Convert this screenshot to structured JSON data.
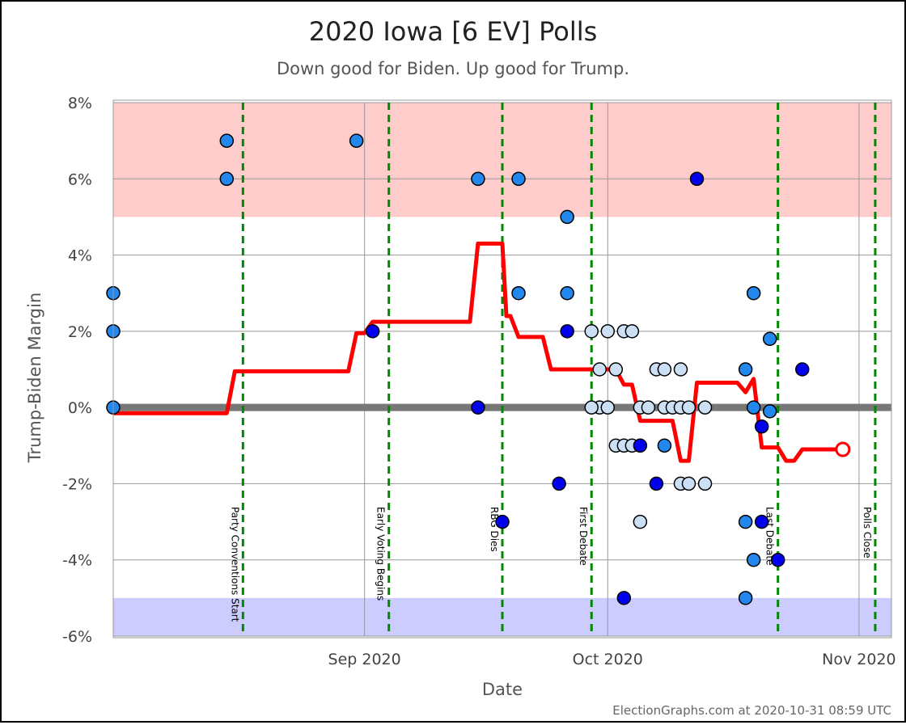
{
  "chart_data": {
    "type": "scatter",
    "title": "2020 Iowa [6 EV] Polls",
    "subtitle": "Down good for Biden. Up good for Trump.",
    "xlabel": "Date",
    "ylabel": "Trump-Biden Margin",
    "credit": "ElectionGraphs.com at 2020-10-31 08:59 UTC",
    "xlim": [
      "2020-08-01",
      "2020-11-05"
    ],
    "ylim": [
      -6,
      8
    ],
    "y_ticks": [
      {
        "v": 8,
        "label": "8%"
      },
      {
        "v": 6,
        "label": "6%"
      },
      {
        "v": 4,
        "label": "4%"
      },
      {
        "v": 2,
        "label": "2%"
      },
      {
        "v": 0,
        "label": "0%"
      },
      {
        "v": -2,
        "label": "-2%"
      },
      {
        "v": -4,
        "label": "-4%"
      },
      {
        "v": -6,
        "label": "-6%"
      }
    ],
    "x_ticks": [
      {
        "date": "2020-09-01",
        "label": "Sep 2020"
      },
      {
        "date": "2020-10-01",
        "label": "Oct 2020"
      },
      {
        "date": "2020-11-01",
        "label": "Nov 2020"
      }
    ],
    "bands": [
      {
        "from": 5,
        "to": 8,
        "color": "#ffcccc"
      },
      {
        "from": -6,
        "to": -5,
        "color": "#ccccff"
      }
    ],
    "events": [
      {
        "date": "2020-08-17",
        "label": "Party Conventions Start"
      },
      {
        "date": "2020-09-04",
        "label": "Early Voting Begins"
      },
      {
        "date": "2020-09-18",
        "label": "RBG Dies"
      },
      {
        "date": "2020-09-29",
        "label": "First Debate"
      },
      {
        "date": "2020-10-22",
        "label": "Last Debate"
      },
      {
        "date": "2020-11-03",
        "label": "Polls Close"
      }
    ],
    "colors": {
      "dark": "#0000ee",
      "medium": "#2288ee",
      "light": "#cce0f5",
      "average": "#ff0000",
      "zero_line": "#777777",
      "event_line": "#008800",
      "grid": "#999999"
    },
    "polls": [
      {
        "date": "2020-08-01",
        "margin": 3,
        "shade": "medium"
      },
      {
        "date": "2020-08-01",
        "margin": 2,
        "shade": "medium"
      },
      {
        "date": "2020-08-01",
        "margin": 0,
        "shade": "medium"
      },
      {
        "date": "2020-08-15",
        "margin": 7,
        "shade": "medium"
      },
      {
        "date": "2020-08-15",
        "margin": 6,
        "shade": "medium"
      },
      {
        "date": "2020-08-31",
        "margin": 7,
        "shade": "medium"
      },
      {
        "date": "2020-09-02",
        "margin": 2,
        "shade": "dark"
      },
      {
        "date": "2020-09-15",
        "margin": 6,
        "shade": "medium"
      },
      {
        "date": "2020-09-15",
        "margin": 0,
        "shade": "dark"
      },
      {
        "date": "2020-09-18",
        "margin": -3,
        "shade": "dark"
      },
      {
        "date": "2020-09-20",
        "margin": 6,
        "shade": "medium"
      },
      {
        "date": "2020-09-20",
        "margin": 3,
        "shade": "medium"
      },
      {
        "date": "2020-09-25",
        "margin": -2,
        "shade": "dark"
      },
      {
        "date": "2020-09-26",
        "margin": 5,
        "shade": "medium"
      },
      {
        "date": "2020-09-26",
        "margin": 3,
        "shade": "medium"
      },
      {
        "date": "2020-09-26",
        "margin": 2,
        "shade": "dark"
      },
      {
        "date": "2020-09-29",
        "margin": 2,
        "shade": "light"
      },
      {
        "date": "2020-09-30",
        "margin": 1,
        "shade": "light"
      },
      {
        "date": "2020-09-30",
        "margin": 0,
        "shade": "light"
      },
      {
        "date": "2020-09-29",
        "margin": 0,
        "shade": "light"
      },
      {
        "date": "2020-10-01",
        "margin": 2,
        "shade": "light"
      },
      {
        "date": "2020-10-01",
        "margin": 0,
        "shade": "light"
      },
      {
        "date": "2020-10-02",
        "margin": 1,
        "shade": "light"
      },
      {
        "date": "2020-10-02",
        "margin": -1,
        "shade": "light"
      },
      {
        "date": "2020-10-03",
        "margin": 2,
        "shade": "light"
      },
      {
        "date": "2020-10-03",
        "margin": -1,
        "shade": "light"
      },
      {
        "date": "2020-10-03",
        "margin": -5,
        "shade": "dark"
      },
      {
        "date": "2020-10-04",
        "margin": 2,
        "shade": "light"
      },
      {
        "date": "2020-10-04",
        "margin": -1,
        "shade": "light"
      },
      {
        "date": "2020-10-05",
        "margin": 0,
        "shade": "light"
      },
      {
        "date": "2020-10-05",
        "margin": -1,
        "shade": "dark"
      },
      {
        "date": "2020-10-05",
        "margin": -3,
        "shade": "light"
      },
      {
        "date": "2020-10-06",
        "margin": 0,
        "shade": "light"
      },
      {
        "date": "2020-10-07",
        "margin": 1,
        "shade": "light"
      },
      {
        "date": "2020-10-07",
        "margin": -2,
        "shade": "dark"
      },
      {
        "date": "2020-10-08",
        "margin": 1,
        "shade": "light"
      },
      {
        "date": "2020-10-08",
        "margin": 0,
        "shade": "light"
      },
      {
        "date": "2020-10-08",
        "margin": -1,
        "shade": "medium"
      },
      {
        "date": "2020-10-09",
        "margin": 0,
        "shade": "light"
      },
      {
        "date": "2020-10-10",
        "margin": 1,
        "shade": "light"
      },
      {
        "date": "2020-10-10",
        "margin": 0,
        "shade": "light"
      },
      {
        "date": "2020-10-10",
        "margin": -2,
        "shade": "light"
      },
      {
        "date": "2020-10-11",
        "margin": 0,
        "shade": "light"
      },
      {
        "date": "2020-10-11",
        "margin": -2,
        "shade": "light"
      },
      {
        "date": "2020-10-12",
        "margin": 6,
        "shade": "dark"
      },
      {
        "date": "2020-10-13",
        "margin": 0,
        "shade": "light"
      },
      {
        "date": "2020-10-13",
        "margin": -2,
        "shade": "light"
      },
      {
        "date": "2020-10-18",
        "margin": 1,
        "shade": "medium"
      },
      {
        "date": "2020-10-18",
        "margin": -3,
        "shade": "medium"
      },
      {
        "date": "2020-10-18",
        "margin": -5,
        "shade": "medium"
      },
      {
        "date": "2020-10-19",
        "margin": 3,
        "shade": "medium"
      },
      {
        "date": "2020-10-19",
        "margin": 0,
        "shade": "medium"
      },
      {
        "date": "2020-10-19",
        "margin": -4,
        "shade": "medium"
      },
      {
        "date": "2020-10-20",
        "margin": -0.5,
        "shade": "dark"
      },
      {
        "date": "2020-10-20",
        "margin": -3,
        "shade": "dark"
      },
      {
        "date": "2020-10-21",
        "margin": 1.8,
        "shade": "medium"
      },
      {
        "date": "2020-10-21",
        "margin": -0.1,
        "shade": "medium"
      },
      {
        "date": "2020-10-22",
        "margin": -4,
        "shade": "dark"
      },
      {
        "date": "2020-10-25",
        "margin": 1,
        "shade": "dark"
      }
    ],
    "average": [
      {
        "date": "2020-08-01",
        "v": -0.15
      },
      {
        "date": "2020-08-15",
        "v": -0.15
      },
      {
        "date": "2020-08-16",
        "v": 0.95
      },
      {
        "date": "2020-08-30",
        "v": 0.95
      },
      {
        "date": "2020-08-31",
        "v": 1.95
      },
      {
        "date": "2020-09-01",
        "v": 1.95
      },
      {
        "date": "2020-09-02",
        "v": 2.25
      },
      {
        "date": "2020-09-14",
        "v": 2.25
      },
      {
        "date": "2020-09-15",
        "v": 4.3
      },
      {
        "date": "2020-09-18",
        "v": 4.3
      },
      {
        "date": "2020-09-18.5",
        "v": 2.4
      },
      {
        "date": "2020-09-19",
        "v": 2.4
      },
      {
        "date": "2020-09-20",
        "v": 1.85
      },
      {
        "date": "2020-09-23",
        "v": 1.85
      },
      {
        "date": "2020-09-24",
        "v": 1.0
      },
      {
        "date": "2020-10-02",
        "v": 1.0
      },
      {
        "date": "2020-10-03",
        "v": 0.6
      },
      {
        "date": "2020-10-04",
        "v": 0.6
      },
      {
        "date": "2020-10-05",
        "v": -0.35
      },
      {
        "date": "2020-10-09",
        "v": -0.35
      },
      {
        "date": "2020-10-10",
        "v": -1.4
      },
      {
        "date": "2020-10-11",
        "v": -1.4
      },
      {
        "date": "2020-10-12",
        "v": 0.65
      },
      {
        "date": "2020-10-17",
        "v": 0.65
      },
      {
        "date": "2020-10-18",
        "v": 0.4
      },
      {
        "date": "2020-10-19",
        "v": 0.75
      },
      {
        "date": "2020-10-20",
        "v": -1.05
      },
      {
        "date": "2020-10-22",
        "v": -1.05
      },
      {
        "date": "2020-10-23",
        "v": -1.4
      },
      {
        "date": "2020-10-24",
        "v": -1.4
      },
      {
        "date": "2020-10-25",
        "v": -1.1
      },
      {
        "date": "2020-10-30",
        "v": -1.1
      }
    ],
    "grid": true,
    "legend": "none"
  }
}
